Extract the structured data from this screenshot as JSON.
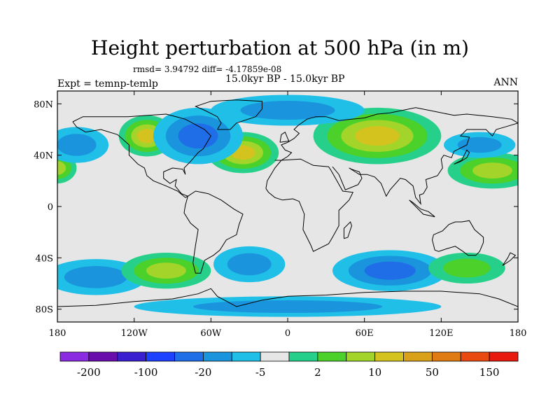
{
  "title": "Height perturbation at 500 hPa (in m)",
  "stats": "rmsd= 3.94792 diff= -4.17859e-08",
  "experiment": "Expt = temnp-temlp",
  "period": "15.0kyr BP - 15.0kyr BP",
  "season": "ANN",
  "map": {
    "lon_range": [
      -180,
      180
    ],
    "lat_range": [
      -90,
      90
    ],
    "lon_ticks": [
      {
        "value": -180,
        "label": "180"
      },
      {
        "value": -120,
        "label": "120W"
      },
      {
        "value": -60,
        "label": "60W"
      },
      {
        "value": 0,
        "label": "0"
      },
      {
        "value": 60,
        "label": "60E"
      },
      {
        "value": 120,
        "label": "120E"
      },
      {
        "value": 180,
        "label": "180"
      }
    ],
    "lat_ticks": [
      {
        "value": 80,
        "label": "80N"
      },
      {
        "value": 40,
        "label": "40N"
      },
      {
        "value": 0,
        "label": "0"
      },
      {
        "value": -40,
        "label": "40S"
      },
      {
        "value": -80,
        "label": "80S"
      }
    ],
    "background_color": "#e6e6e6",
    "features": [
      {
        "name": "n-atlantic-high",
        "lon": -35,
        "lat": 42,
        "rx": 28,
        "ry": 16,
        "level": 4
      },
      {
        "name": "n-america-high",
        "lon": -110,
        "lat": 55,
        "rx": 22,
        "ry": 16,
        "level": 4
      },
      {
        "name": "siberia-high",
        "lon": 70,
        "lat": 55,
        "rx": 50,
        "ry": 22,
        "level": 4
      },
      {
        "name": "n-pacific-high",
        "lon": 160,
        "lat": 28,
        "rx": 35,
        "ry": 14,
        "level": 3
      },
      {
        "name": "w-pacific-high",
        "lon": -180,
        "lat": 30,
        "rx": 15,
        "ry": 12,
        "level": 3
      },
      {
        "name": "canada-low",
        "lon": -70,
        "lat": 55,
        "rx": 35,
        "ry": 22,
        "level": -3
      },
      {
        "name": "arctic-low",
        "lon": 0,
        "lat": 75,
        "rx": 60,
        "ry": 12,
        "level": -2
      },
      {
        "name": "s-indian-low",
        "lon": 80,
        "lat": -50,
        "rx": 45,
        "ry": 16,
        "level": -3
      },
      {
        "name": "s-atlantic-low",
        "lon": -30,
        "lat": -45,
        "rx": 28,
        "ry": 14,
        "level": -2
      },
      {
        "name": "s-pacific-low",
        "lon": -150,
        "lat": -55,
        "rx": 40,
        "ry": 14,
        "level": -2
      },
      {
        "name": "s-pacific-high",
        "lon": -95,
        "lat": -50,
        "rx": 35,
        "ry": 14,
        "level": 3
      },
      {
        "name": "s-ocean-high",
        "lon": 140,
        "lat": -48,
        "rx": 30,
        "ry": 12,
        "level": 2
      },
      {
        "name": "e-pacific-low",
        "lon": -165,
        "lat": 48,
        "rx": 25,
        "ry": 14,
        "level": -2
      },
      {
        "name": "n-pacific-low2",
        "lon": 150,
        "lat": 48,
        "rx": 28,
        "ry": 10,
        "level": -2
      },
      {
        "name": "antarctic-low",
        "lon": 0,
        "lat": -78,
        "rx": 120,
        "ry": 8,
        "level": -2
      }
    ]
  },
  "colorbar": {
    "colors": [
      "#8a2be2",
      "#6a0dad",
      "#3a1fd0",
      "#1e40ff",
      "#1f6ee8",
      "#1a95dd",
      "#1fbfe8",
      "#e6e6e6",
      "#26d08a",
      "#4bd12a",
      "#a3d42a",
      "#d4c21f",
      "#d9a01a",
      "#e07a12",
      "#e84a10",
      "#e81a10"
    ],
    "labels": [
      {
        "boundary": 1,
        "label": "-200"
      },
      {
        "boundary": 3,
        "label": "-100"
      },
      {
        "boundary": 5,
        "label": "-20"
      },
      {
        "boundary": 7,
        "label": "-5"
      },
      {
        "boundary": 9,
        "label": "2"
      },
      {
        "boundary": 11,
        "label": "10"
      },
      {
        "boundary": 13,
        "label": "50"
      },
      {
        "boundary": 15,
        "label": "150"
      }
    ]
  }
}
